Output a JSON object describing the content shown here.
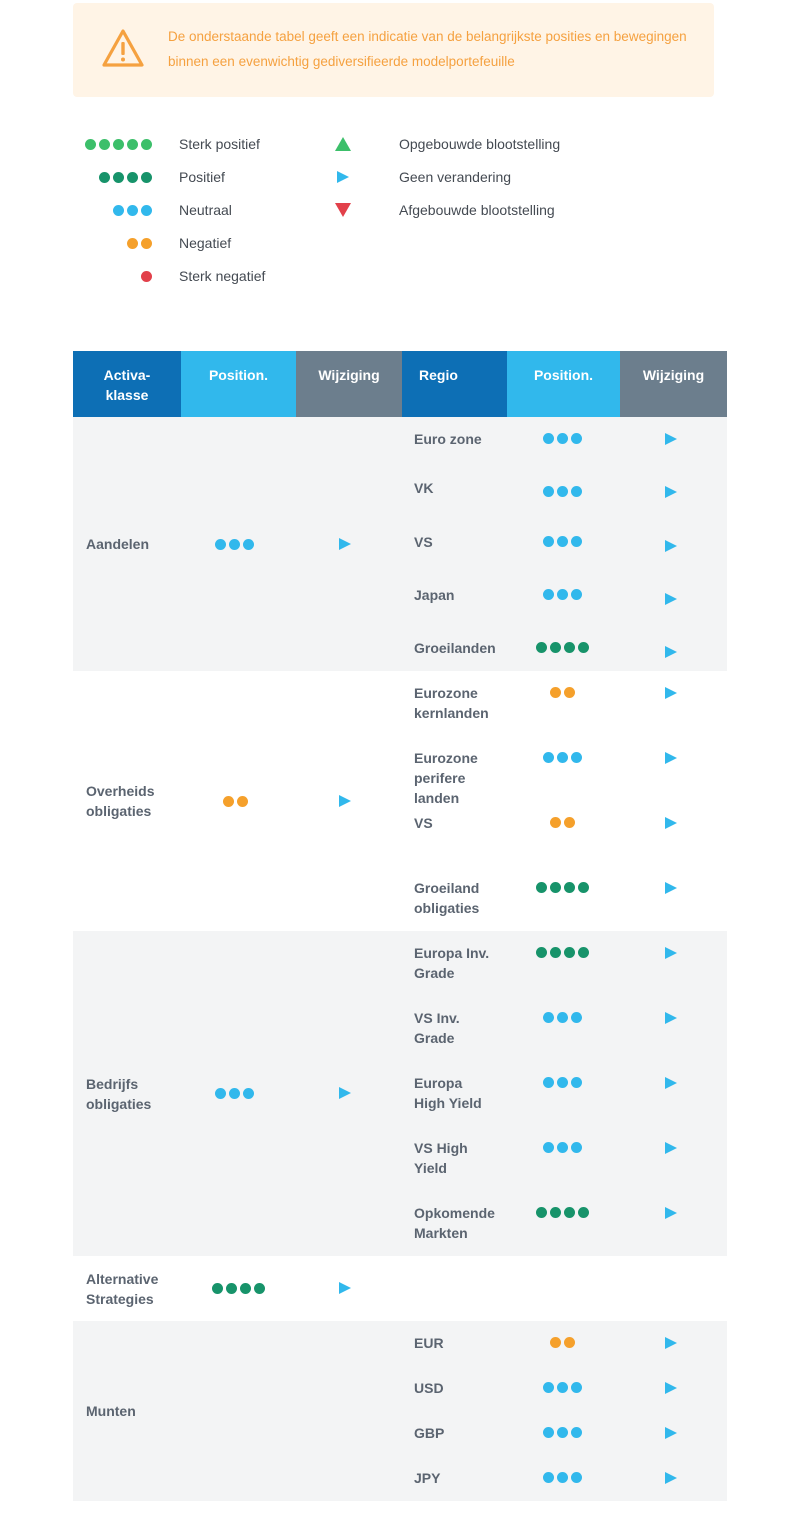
{
  "notice": {
    "icon": "warning-triangle-icon",
    "text": "De onderstaande tabel geeft een indicatie van de belangrijkste posities en bewegingen binnen een evenwichtig gediversifieerde modelportefeuille",
    "color": "#f5a140"
  },
  "colors": {
    "sterk_positief": "#3cbf6a",
    "positief": "#17936a",
    "neutraal": "#31b8ec",
    "negatief": "#f5a02b",
    "sterk_negatief": "#e2404a",
    "up": "#3cbf6a",
    "right": "#31b8ec",
    "down": "#e2404a"
  },
  "legend": {
    "ratings": [
      {
        "label": "Sterk positief",
        "dots": 5,
        "color": "#3cbf6a"
      },
      {
        "label": "Positief",
        "dots": 4,
        "color": "#17936a"
      },
      {
        "label": "Neutraal",
        "dots": 3,
        "color": "#31b8ec"
      },
      {
        "label": "Negatief",
        "dots": 2,
        "color": "#f5a02b"
      },
      {
        "label": "Sterk negatief",
        "dots": 1,
        "color": "#e2404a"
      }
    ],
    "changes": [
      {
        "label": "Opgebouwde blootstelling",
        "icon": "triangle-up-icon"
      },
      {
        "label": "Geen verandering",
        "icon": "triangle-right-icon"
      },
      {
        "label": "Afgebouwde blootstelling",
        "icon": "triangle-down-icon"
      }
    ]
  },
  "table": {
    "headers": [
      "Activa-\nklasse",
      "Position.",
      "Wijziging",
      "Regio",
      "Position.",
      "Wijziging"
    ],
    "groups": [
      {
        "label": "Aandelen",
        "rating": "neutraal",
        "change": "right",
        "regions": [
          {
            "label": "Euro zone",
            "rating": "neutraal",
            "change": "right"
          },
          {
            "label": "VK",
            "rating": "neutraal",
            "change": "right"
          },
          {
            "label": "VS",
            "rating": "neutraal",
            "change": "right"
          },
          {
            "label": "Japan",
            "rating": "neutraal",
            "change": "right"
          },
          {
            "label": "Groeilanden",
            "rating": "positief",
            "change": "right"
          }
        ]
      },
      {
        "label": "Overheids\nobligaties",
        "rating": "negatief",
        "change": "right",
        "regions": [
          {
            "label": "Eurozone\nkernlanden",
            "rating": "negatief",
            "change": "right"
          },
          {
            "label": "Eurozone\nperifere\nlanden",
            "rating": "neutraal",
            "change": "right"
          },
          {
            "label": "VS",
            "rating": "negatief",
            "change": "right"
          },
          {
            "label": "Groeiland\nobligaties",
            "rating": "positief",
            "change": "right"
          }
        ]
      },
      {
        "label": "Bedrijfs\nobligaties",
        "rating": "neutraal",
        "change": "right",
        "regions": [
          {
            "label": "Europa Inv.\nGrade",
            "rating": "positief",
            "change": "right"
          },
          {
            "label": "VS Inv.\nGrade",
            "rating": "neutraal",
            "change": "right"
          },
          {
            "label": "Europa\nHigh Yield",
            "rating": "neutraal",
            "change": "right"
          },
          {
            "label": "VS High\nYield",
            "rating": "neutraal",
            "change": "right"
          },
          {
            "label": "Opkomende\nMarkten",
            "rating": "positief",
            "change": "right"
          }
        ]
      },
      {
        "label": "Alternative\nStrategies",
        "rating": "positief",
        "change": "right",
        "regions": []
      },
      {
        "label": "Munten",
        "rating": null,
        "change": null,
        "regions": [
          {
            "label": "EUR",
            "rating": "negatief",
            "change": "right"
          },
          {
            "label": "USD",
            "rating": "neutraal",
            "change": "right"
          },
          {
            "label": "GBP",
            "rating": "neutraal",
            "change": "right"
          },
          {
            "label": "JPY",
            "rating": "neutraal",
            "change": "right"
          }
        ]
      }
    ]
  }
}
